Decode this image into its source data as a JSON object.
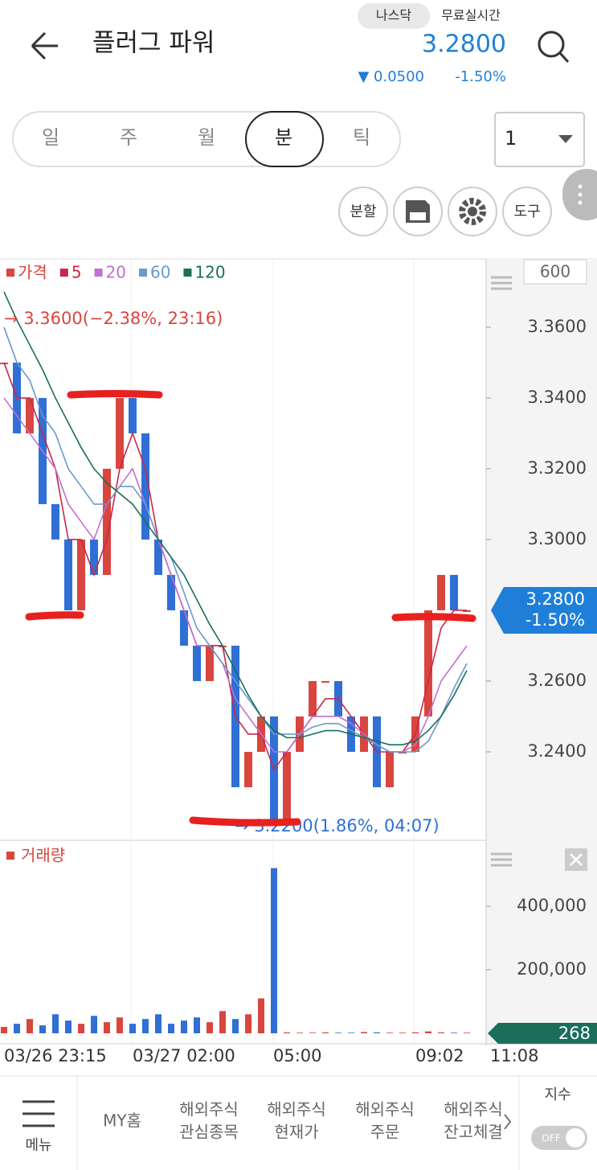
{
  "header": {
    "title": "플러그 파워",
    "exchange": "나스닥",
    "realtime": "무료실시간",
    "price": "3.2800",
    "change": "▼ 0.0500",
    "change_pct": "-1.50%"
  },
  "tabs": [
    "일",
    "주",
    "월",
    "분",
    "틱"
  ],
  "interval": "1",
  "tools": [
    "분할",
    "도구"
  ],
  "chart_data": [
    {
      "type": "price",
      "legend": [
        "가격",
        "5",
        "20",
        "60",
        "120"
      ],
      "series": [
        {
          "name": "가격",
          "color": "#d9453f",
          "values": [
            3.35,
            3.33,
            3.34,
            3.31,
            3.3,
            3.28,
            3.3,
            3.29,
            3.32,
            3.34,
            3.33,
            3.3,
            3.29,
            3.28,
            3.27,
            3.26,
            3.27,
            3.27,
            3.23,
            3.24,
            3.25,
            3.22,
            3.24,
            3.25,
            3.26,
            3.26,
            3.25,
            3.24,
            3.25,
            3.23,
            3.24,
            3.24,
            3.25,
            3.28,
            3.29,
            3.28,
            3.28
          ]
        },
        {
          "name": "5",
          "color": "#c8284a",
          "values": [
            3.35,
            3.34,
            3.34,
            3.33,
            3.32,
            3.3,
            3.3,
            3.29,
            3.3,
            3.32,
            3.33,
            3.32,
            3.3,
            3.29,
            3.28,
            3.27,
            3.27,
            3.27,
            3.25,
            3.245,
            3.245,
            3.235,
            3.24,
            3.245,
            3.25,
            3.255,
            3.255,
            3.25,
            3.245,
            3.24,
            3.24,
            3.24,
            3.245,
            3.26,
            3.275,
            3.28,
            3.28
          ]
        },
        {
          "name": "20",
          "color": "#c070d0",
          "values": [
            3.34,
            3.335,
            3.33,
            3.325,
            3.32,
            3.31,
            3.305,
            3.3,
            3.31,
            3.315,
            3.32,
            3.31,
            3.3,
            3.29,
            3.28,
            3.27,
            3.27,
            3.265,
            3.255,
            3.25,
            3.245,
            3.24,
            3.24,
            3.245,
            3.25,
            3.25,
            3.25,
            3.248,
            3.245,
            3.242,
            3.24,
            3.24,
            3.242,
            3.25,
            3.26,
            3.265,
            3.27
          ]
        },
        {
          "name": "60",
          "color": "#6a9acb",
          "values": [
            3.36,
            3.35,
            3.345,
            3.335,
            3.33,
            3.32,
            3.315,
            3.31,
            3.31,
            3.315,
            3.315,
            3.31,
            3.3,
            3.295,
            3.285,
            3.275,
            3.27,
            3.265,
            3.26,
            3.255,
            3.25,
            3.245,
            3.245,
            3.245,
            3.247,
            3.248,
            3.248,
            3.246,
            3.244,
            3.242,
            3.24,
            3.24,
            3.24,
            3.243,
            3.25,
            3.258,
            3.265
          ]
        },
        {
          "name": "120",
          "color": "#1a6e5a",
          "values": [
            3.37,
            3.362,
            3.355,
            3.348,
            3.34,
            3.333,
            3.326,
            3.32,
            3.316,
            3.313,
            3.31,
            3.305,
            3.3,
            3.295,
            3.29,
            3.283,
            3.276,
            3.27,
            3.263,
            3.256,
            3.25,
            3.246,
            3.244,
            3.244,
            3.245,
            3.246,
            3.246,
            3.245,
            3.244,
            3.243,
            3.242,
            3.242,
            3.243,
            3.246,
            3.25,
            3.256,
            3.263
          ]
        }
      ],
      "ylim": [
        3.215,
        3.3793
      ],
      "yticks": [
        {
          "value": 3.24,
          "label": "3.2400"
        },
        {
          "value": 3.26,
          "label": "3.2600"
        },
        {
          "value": 3.3,
          "label": "3.3000"
        },
        {
          "value": 3.32,
          "label": "3.3200"
        },
        {
          "value": 3.34,
          "label": "3.3400"
        },
        {
          "value": 3.36,
          "label": "3.3600"
        }
      ],
      "last": {
        "value": 3.28,
        "label": "3.2800",
        "change": "-1.50%"
      },
      "high_note": "→ 3.3600(−2.38%, 23:16)",
      "low_note": "→ 3.2200(1.86%, 04:07)",
      "scale_box": "600"
    },
    {
      "type": "bar",
      "title": "거래량",
      "up_color": "#d9453f",
      "down_color": "#2f6fd6",
      "values": [
        20000,
        30000,
        45000,
        25000,
        60000,
        40000,
        30000,
        55000,
        35000,
        50000,
        30000,
        45000,
        60000,
        30000,
        40000,
        50000,
        35000,
        70000,
        45000,
        60000,
        110000,
        520000,
        3000,
        2000,
        2000,
        3000,
        2000,
        2000,
        4000,
        3000,
        2000,
        2000,
        3000,
        6000,
        3000,
        2000,
        2000
      ],
      "ylim": [
        0,
        600000
      ],
      "yticks": [
        {
          "value": 200000,
          "label": "200,000"
        },
        {
          "value": 400000,
          "label": "400,000"
        }
      ],
      "last": "268",
      "x_labels": [
        "03/26 23:15",
        "03/27 02:00",
        "05:00",
        "09:02",
        "11:08"
      ]
    }
  ],
  "nav": {
    "menu": "메뉴",
    "items": [
      [
        "MY홈"
      ],
      [
        "해외주식",
        "관심종목"
      ],
      [
        "해외주식",
        "현재가"
      ],
      [
        "해외주식",
        "주문"
      ],
      [
        "해외주식",
        "잔고체결"
      ]
    ],
    "index_label": "지수",
    "toggle": "OFF"
  }
}
